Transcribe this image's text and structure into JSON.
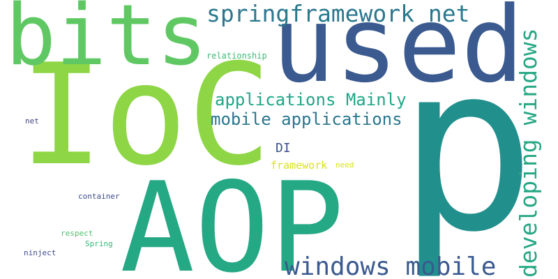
{
  "words": {
    "ioc": {
      "text": "IoC",
      "color": "#8ed645"
    },
    "p": {
      "text": "p",
      "color": "#21908d"
    },
    "used": {
      "text": "used",
      "color": "#3b5a8f"
    },
    "bits": {
      "text": "bits",
      "color": "#5fc863"
    },
    "aop": {
      "text": "AOP",
      "color": "#25a884"
    },
    "springframework": {
      "text": "springframework net",
      "color": "#2a788e"
    },
    "windows_mobile": {
      "text": "windows mobile",
      "color": "#3b5a8f"
    },
    "developing": {
      "text": "developing windows",
      "color": "#25a884"
    },
    "apps_mainly": {
      "text": "applications Mainly",
      "color": "#21a586"
    },
    "mobile_apps": {
      "text": "mobile applications",
      "color": "#2a768e"
    },
    "di": {
      "text": "DI",
      "color": "#3b528b"
    },
    "framework": {
      "text": "framework",
      "color": "#d8e219"
    },
    "need": {
      "text": "need",
      "color": "#d8e219"
    },
    "relationship": {
      "text": "relationship",
      "color": "#3bbb75"
    },
    "net": {
      "text": "net",
      "color": "#414487"
    },
    "container": {
      "text": "container",
      "color": "#3e4c8a"
    },
    "respect": {
      "text": "respect",
      "color": "#4ac16d"
    },
    "spring": {
      "text": "Spring",
      "color": "#35b779"
    },
    "ninject": {
      "text": "ninject",
      "color": "#3e4c8a"
    }
  }
}
